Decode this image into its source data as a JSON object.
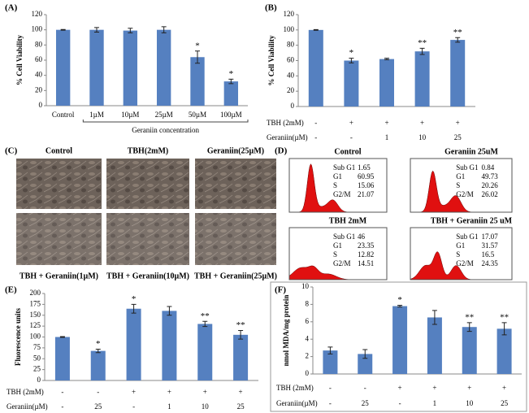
{
  "chart_data": [
    {
      "type": "bar",
      "panel": "(A)",
      "y_label": "% Cell Viability",
      "x_label": "Geraniin concentration",
      "categories": [
        "Control",
        "1µM",
        "10µM",
        "25µM",
        "50µM",
        "100µM"
      ],
      "values": [
        100,
        100,
        99,
        100,
        64,
        32
      ],
      "errors": [
        0.5,
        3,
        3,
        4,
        8,
        3
      ],
      "significance": [
        null,
        null,
        null,
        null,
        "*",
        "*"
      ],
      "color": "#5580c0",
      "ylim": [
        0,
        120
      ],
      "yticks": [
        0,
        20,
        40,
        60,
        80,
        100,
        120
      ]
    },
    {
      "type": "bar",
      "panel": "(B)",
      "y_label": "% Cell Viability",
      "values": [
        100,
        60,
        62,
        72,
        87
      ],
      "errors": [
        0.5,
        3,
        1,
        4,
        3
      ],
      "significance": [
        null,
        "*",
        null,
        "**",
        "**"
      ],
      "color": "#5580c0",
      "treatment_rows": [
        {
          "label": "TBH (2mM)",
          "values": [
            "-",
            "+",
            "+",
            "+",
            "+"
          ]
        },
        {
          "label": "Geraniin(µM)",
          "values": [
            "-",
            "-",
            "1",
            "10",
            "25"
          ]
        }
      ],
      "ylim": [
        0,
        120
      ],
      "yticks": [
        0,
        20,
        40,
        60,
        80,
        100,
        120
      ]
    },
    {
      "type": "bar",
      "panel": "(E)",
      "y_label": "Fluorescence units",
      "values": [
        100,
        68,
        165,
        160,
        130,
        105
      ],
      "errors": [
        1,
        4,
        10,
        10,
        6,
        10
      ],
      "significance": [
        null,
        "*",
        "*",
        null,
        "**",
        "**"
      ],
      "color": "#5580c0",
      "treatment_rows": [
        {
          "label": "TBH (2mM)",
          "values": [
            "-",
            "-",
            "+",
            "+",
            "+",
            "+"
          ]
        },
        {
          "label": "Geraniin(µM)",
          "values": [
            "-",
            "25",
            "-",
            "1",
            "10",
            "25"
          ]
        }
      ],
      "ylim": [
        0,
        200
      ],
      "yticks": [
        0,
        25,
        50,
        75,
        100,
        125,
        150,
        175,
        200
      ]
    },
    {
      "type": "bar",
      "panel": "(F)",
      "y_label": "nmol MDA/mg protein",
      "values": [
        2.7,
        2.3,
        7.8,
        6.5,
        5.4,
        5.2
      ],
      "errors": [
        0.4,
        0.5,
        0.1,
        0.8,
        0.5,
        0.7
      ],
      "significance": [
        null,
        null,
        "*",
        null,
        "**",
        "**"
      ],
      "color": "#5580c0",
      "treatment_rows": [
        {
          "label": "TBH (2mM)",
          "values": [
            "-",
            "-",
            "+",
            "+",
            "+",
            "+"
          ]
        },
        {
          "label": "Geraniin(µM)",
          "values": [
            "-",
            "25",
            "-",
            "1",
            "10",
            "25"
          ]
        }
      ],
      "ylim": [
        0,
        10
      ],
      "yticks": [
        0,
        2,
        4,
        6,
        8,
        10
      ]
    }
  ],
  "image_panel": {
    "panel": "(C)",
    "top_labels": [
      "Control",
      "TBH(2mM)",
      "Geraniin(25µM)"
    ],
    "bottom_labels": [
      "TBH + Geraniin(1µM)",
      "TBH + Geraniin(10µM)",
      "TBH + Geraniin(25µM)"
    ]
  },
  "flow_panel": {
    "panel": "(D)",
    "plots": [
      {
        "title": "Control",
        "rows": [
          {
            "label": "Sub G1",
            "value": 1.65
          },
          {
            "label": "G1",
            "value": 60.95
          },
          {
            "label": "S",
            "value": 15.06
          },
          {
            "label": "G2/M",
            "value": 21.07
          }
        ]
      },
      {
        "title": "Geraniin 25uM",
        "rows": [
          {
            "label": "Sub G1",
            "value": 0.84
          },
          {
            "label": "G1",
            "value": 49.73
          },
          {
            "label": "S",
            "value": 20.26
          },
          {
            "label": "G2/M",
            "value": 26.02
          }
        ]
      },
      {
        "title": "TBH 2mM",
        "rows": [
          {
            "label": "Sub G1",
            "value": 46
          },
          {
            "label": "G1",
            "value": 23.35
          },
          {
            "label": "S",
            "value": 12.82
          },
          {
            "label": "G2/M",
            "value": 14.51
          }
        ]
      },
      {
        "title": "TBH + Geraniin 25 uM",
        "rows": [
          {
            "label": "Sub G1",
            "value": 17.07
          },
          {
            "label": "G1",
            "value": 31.57
          },
          {
            "label": "S",
            "value": 16.5
          },
          {
            "label": "G2/M",
            "value": 24.35
          }
        ]
      }
    ]
  }
}
